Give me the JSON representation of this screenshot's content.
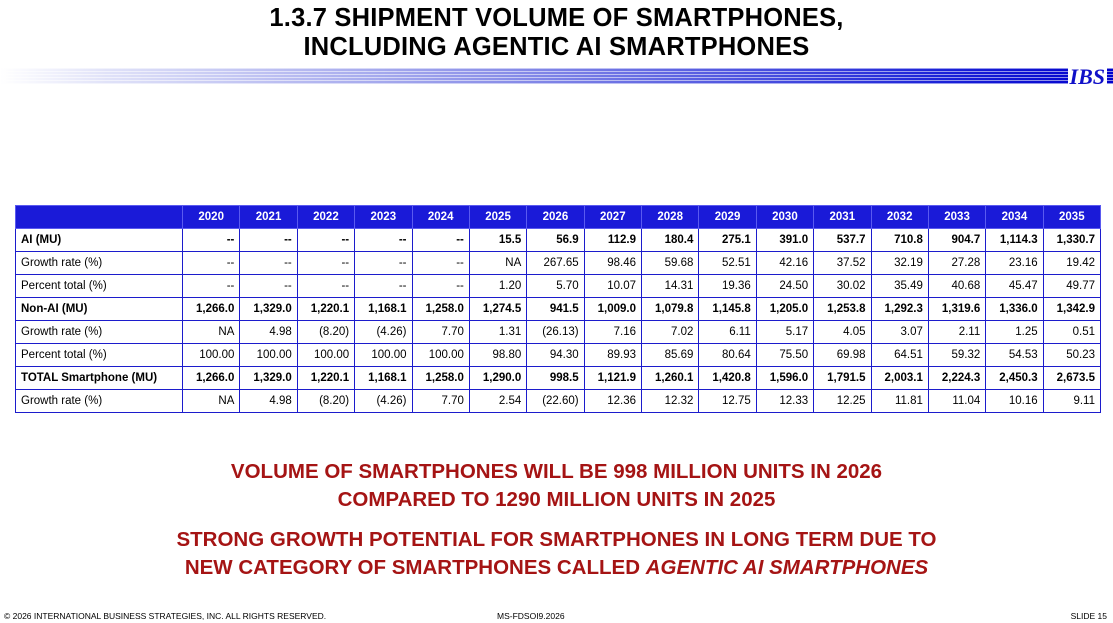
{
  "title": {
    "line1": "1.3.7  SHIPMENT VOLUME OF SMARTPHONES,",
    "line2": "INCLUDING AGENTIC AI SMARTPHONES"
  },
  "logo": "IBS",
  "table": {
    "years": [
      "2020",
      "2021",
      "2022",
      "2023",
      "2024",
      "2025",
      "2026",
      "2027",
      "2028",
      "2029",
      "2030",
      "2031",
      "2032",
      "2033",
      "2034",
      "2035"
    ],
    "rows": [
      {
        "label": "AI (MU)",
        "bold": true,
        "values": [
          "--",
          "--",
          "--",
          "--",
          "--",
          "15.5",
          "56.9",
          "112.9",
          "180.4",
          "275.1",
          "391.0",
          "537.7",
          "710.8",
          "904.7",
          "1,114.3",
          "1,330.7"
        ]
      },
      {
        "label": "Growth rate (%)",
        "bold": false,
        "values": [
          "--",
          "--",
          "--",
          "--",
          "--",
          "NA",
          "267.65",
          "98.46",
          "59.68",
          "52.51",
          "42.16",
          "37.52",
          "32.19",
          "27.28",
          "23.16",
          "19.42"
        ]
      },
      {
        "label": "Percent total (%)",
        "bold": false,
        "values": [
          "--",
          "--",
          "--",
          "--",
          "--",
          "1.20",
          "5.70",
          "10.07",
          "14.31",
          "19.36",
          "24.50",
          "30.02",
          "35.49",
          "40.68",
          "45.47",
          "49.77"
        ]
      },
      {
        "label": "Non-AI (MU)",
        "bold": true,
        "values": [
          "1,266.0",
          "1,329.0",
          "1,220.1",
          "1,168.1",
          "1,258.0",
          "1,274.5",
          "941.5",
          "1,009.0",
          "1,079.8",
          "1,145.8",
          "1,205.0",
          "1,253.8",
          "1,292.3",
          "1,319.6",
          "1,336.0",
          "1,342.9"
        ]
      },
      {
        "label": "Growth rate (%)",
        "bold": false,
        "values": [
          "NA",
          "4.98",
          "(8.20)",
          "(4.26)",
          "7.70",
          "1.31",
          "(26.13)",
          "7.16",
          "7.02",
          "6.11",
          "5.17",
          "4.05",
          "3.07",
          "2.11",
          "1.25",
          "0.51"
        ]
      },
      {
        "label": "Percent total (%)",
        "bold": false,
        "values": [
          "100.00",
          "100.00",
          "100.00",
          "100.00",
          "100.00",
          "98.80",
          "94.30",
          "89.93",
          "85.69",
          "80.64",
          "75.50",
          "69.98",
          "64.51",
          "59.32",
          "54.53",
          "50.23"
        ]
      },
      {
        "label": "TOTAL Smartphone (MU)",
        "bold": true,
        "values": [
          "1,266.0",
          "1,329.0",
          "1,220.1",
          "1,168.1",
          "1,258.0",
          "1,290.0",
          "998.5",
          "1,121.9",
          "1,260.1",
          "1,420.8",
          "1,596.0",
          "1,791.5",
          "2,003.1",
          "2,224.3",
          "2,450.3",
          "2,673.5"
        ]
      },
      {
        "label": "Growth rate (%)",
        "bold": false,
        "values": [
          "NA",
          "4.98",
          "(8.20)",
          "(4.26)",
          "7.70",
          "2.54",
          "(22.60)",
          "12.36",
          "12.32",
          "12.75",
          "12.33",
          "12.25",
          "11.81",
          "11.04",
          "10.16",
          "9.11"
        ]
      }
    ]
  },
  "message1": {
    "line1": "VOLUME OF SMARTPHONES WILL BE 998 MILLION UNITS IN 2026",
    "line2": "COMPARED TO 1290 MILLION UNITS IN 2025"
  },
  "message2": {
    "line1": "STRONG GROWTH POTENTIAL FOR SMARTPHONES IN LONG TERM DUE TO",
    "line2_prefix": "NEW CATEGORY OF SMARTPHONES CALLED ",
    "line2_emph": "AGENTIC AI SMARTPHONES"
  },
  "footer": {
    "copyright": "© 2026 INTERNATIONAL BUSINESS STRATEGIES, INC. ALL RIGHTS RESERVED.",
    "doc_id": "MS-FDSOI9.2026",
    "slide": "SLIDE 15"
  },
  "colors": {
    "header_bg": "#1a1ad8",
    "table_border": "#1c1ccc",
    "message_text": "#a51414",
    "logo_text": "#1010c8"
  }
}
